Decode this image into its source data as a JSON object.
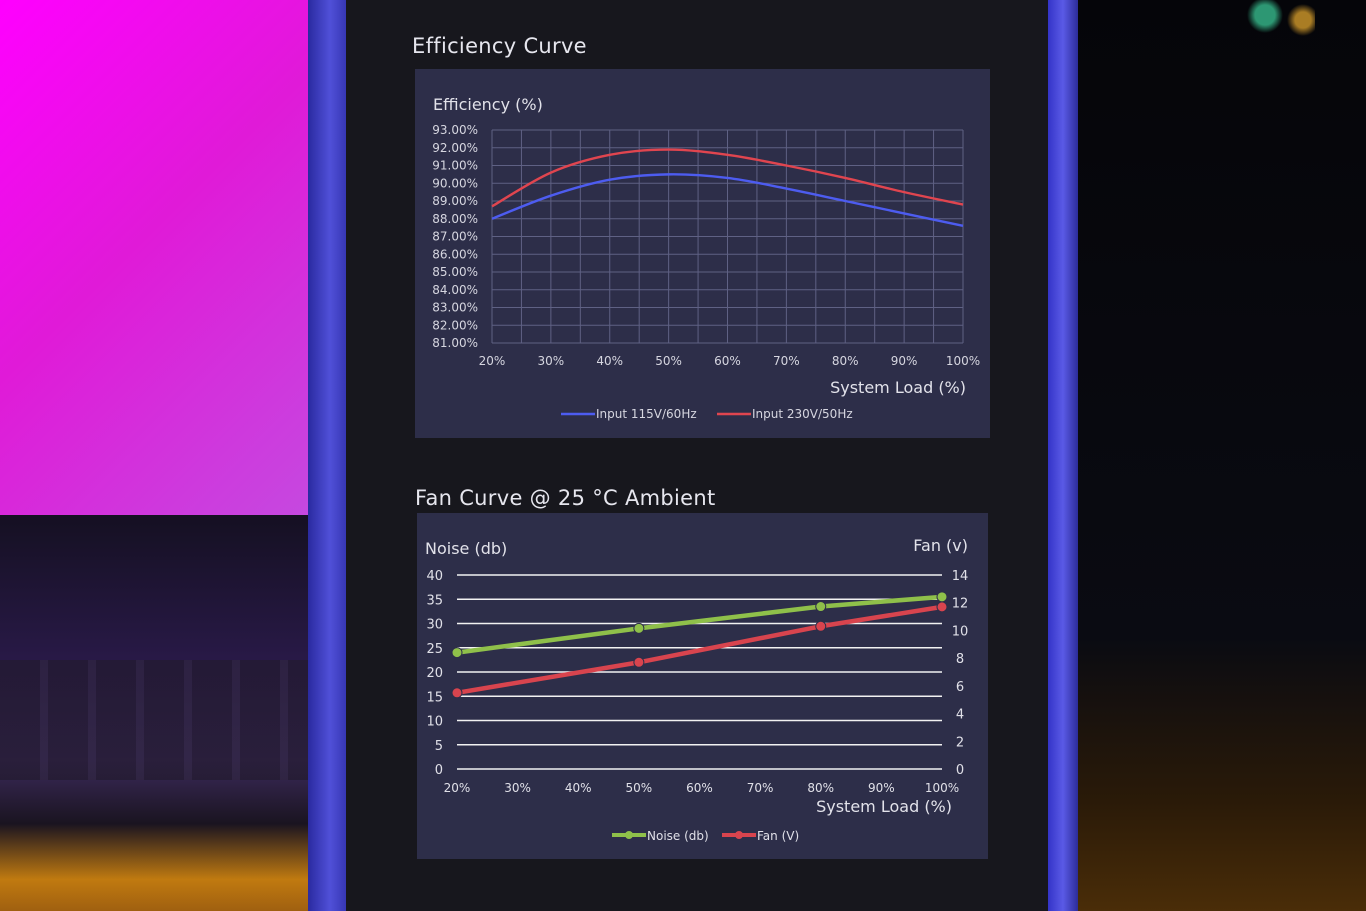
{
  "chart_data": [
    {
      "type": "line",
      "title": "Efficiency Curve",
      "ylabel": "Efficiency (%)",
      "xlabel": "System Load (%)",
      "categories": [
        "20%",
        "30%",
        "40%",
        "50%",
        "60%",
        "70%",
        "80%",
        "90%",
        "100%"
      ],
      "x": [
        20,
        30,
        40,
        50,
        60,
        70,
        80,
        90,
        100
      ],
      "ylim": [
        81,
        93
      ],
      "yticks": [
        93,
        92,
        91,
        90,
        89,
        88,
        87,
        86,
        85,
        84,
        83,
        82,
        81
      ],
      "ytick_labels": [
        "93.00%",
        "92.00%",
        "91.00%",
        "90.00%",
        "89.00%",
        "88.00%",
        "87.00%",
        "86.00%",
        "85.00%",
        "84.00%",
        "83.00%",
        "82.00%",
        "81.00%"
      ],
      "grid": true,
      "legend": "bottom",
      "series": [
        {
          "name": "Input 115V/60Hz",
          "color": "#4d5cf0",
          "values": [
            88.0,
            89.3,
            90.2,
            90.5,
            90.3,
            89.7,
            89.0,
            88.3,
            87.6
          ]
        },
        {
          "name": "Input 230V/50Hz",
          "color": "#e0454f",
          "values": [
            88.7,
            90.6,
            91.6,
            91.9,
            91.6,
            91.0,
            90.3,
            89.5,
            88.8
          ]
        }
      ]
    },
    {
      "type": "line",
      "title": "Fan  Curve @ 25 °C Ambient",
      "ylabel": "Noise (db)",
      "y2label": "Fan (v)",
      "xlabel": "System Load (%)",
      "categories": [
        "20%",
        "30%",
        "40%",
        "50%",
        "60%",
        "70%",
        "80%",
        "90%",
        "100%"
      ],
      "x": [
        20,
        30,
        40,
        50,
        60,
        70,
        80,
        90,
        100
      ],
      "ylim": [
        0,
        40
      ],
      "yticks": [
        40,
        35,
        30,
        25,
        20,
        15,
        10,
        5,
        0
      ],
      "y2lim": [
        0,
        14
      ],
      "y2ticks": [
        14,
        12,
        10,
        8,
        6,
        4,
        2,
        0
      ],
      "grid": true,
      "legend": "bottom",
      "series": [
        {
          "name": "Noise (db)",
          "color": "#8fc04a",
          "axis": "left",
          "x": [
            20,
            50,
            80,
            100
          ],
          "values": [
            24,
            29,
            33.5,
            35.5
          ]
        },
        {
          "name": "Fan (V)",
          "color": "#d8444e",
          "axis": "right",
          "x": [
            20,
            50,
            80,
            100
          ],
          "values": [
            5.5,
            7.7,
            10.3,
            11.7
          ]
        }
      ]
    }
  ]
}
